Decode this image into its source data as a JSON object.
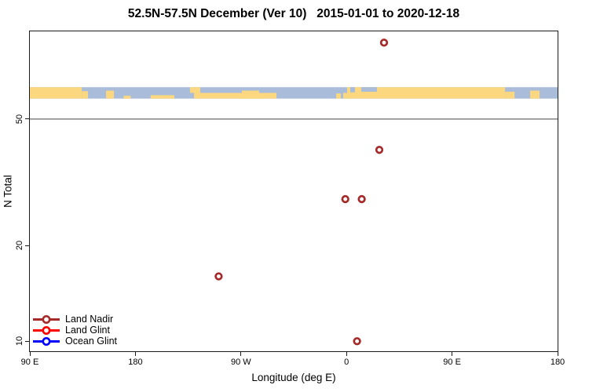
{
  "title": "52.5N-57.5N December (Ver 10)   2015-01-01 to 2020-12-18",
  "axes": {
    "xlabel": "Longitude (deg E)",
    "ylabel": "N Total"
  },
  "legend": {
    "items": [
      {
        "label": "Land Nadir",
        "color": "#A52A2A"
      },
      {
        "label": "Land Glint",
        "color": "#FF0000"
      },
      {
        "label": "Ocean Glint",
        "color": "#0000FF"
      }
    ]
  },
  "chart_data": {
    "type": "scatter",
    "title": "52.5N-57.5N December (Ver 10)   2015-01-01 to 2020-12-18",
    "xlabel": "Longitude (deg E)",
    "ylabel": "N Total",
    "x_axis": {
      "min": 90,
      "max": 540,
      "note": "longitude axis wraps eastward: 90E -> 180 -> 90W -> 0 -> 90E -> 180",
      "ticks": [
        {
          "x": 90,
          "label": "90 E"
        },
        {
          "x": 180,
          "label": "180"
        },
        {
          "x": 270,
          "label": "90 W"
        },
        {
          "x": 360,
          "label": "0"
        },
        {
          "x": 450,
          "label": "90 E"
        },
        {
          "x": 540,
          "label": "180"
        }
      ]
    },
    "y_axis": {
      "scale": "log10",
      "min": 9.3,
      "max": 94.4,
      "ticks": [
        {
          "v": 10,
          "label": "10"
        },
        {
          "v": 20,
          "label": "20"
        },
        {
          "v": 50,
          "label": "50"
        }
      ],
      "gridline_at": 50,
      "gridline_color": "#444444"
    },
    "series": [
      {
        "name": "Land Nadir",
        "color": "#A52A2A",
        "points": [
          {
            "x": 392,
            "lon": "32E",
            "n": 87
          },
          {
            "x": 388,
            "lon": "28E",
            "n": 40
          },
          {
            "x": 359,
            "lon": "1W",
            "n": 28
          },
          {
            "x": 373,
            "lon": "13E",
            "n": 28
          },
          {
            "x": 251,
            "lon": "109W",
            "n": 16
          },
          {
            "x": 369,
            "lon": "9E",
            "n": 10
          }
        ]
      },
      {
        "name": "Land Glint",
        "color": "#FF0000",
        "points": []
      },
      {
        "name": "Ocean Glint",
        "color": "#0000FF",
        "points": []
      }
    ],
    "map_band": {
      "description": "land/ocean world-map strip for latitude band 52.5N-57.5N",
      "land_color": "#FBD77F",
      "ocean_color": "#A9BDDB",
      "v_top": 63,
      "v_bottom": 58,
      "land_segments": [
        {
          "x0": 90,
          "x1": 134.3,
          "y0": 0,
          "y1": 1
        },
        {
          "x0": 134.3,
          "x1": 139.6,
          "y0": 0.35,
          "y1": 1
        },
        {
          "x0": 155,
          "x1": 161.7,
          "y0": 0.3,
          "y1": 1
        },
        {
          "x0": 170,
          "x1": 176,
          "y0": 0.75,
          "y1": 1
        },
        {
          "x0": 193,
          "x1": 213.2,
          "y0": 0.7,
          "y1": 1
        },
        {
          "x0": 226.6,
          "x1": 235.3,
          "y0": 0,
          "y1": 0.5
        },
        {
          "x0": 230,
          "x1": 300.3,
          "y0": 0.5,
          "y1": 1
        },
        {
          "x0": 270.8,
          "x1": 285.5,
          "y0": 0.3,
          "y1": 1
        },
        {
          "x0": 351.2,
          "x1": 355.2,
          "y0": 0.55,
          "y1": 1
        },
        {
          "x0": 357.2,
          "x1": 360.5,
          "y0": 0.5,
          "y1": 1
        },
        {
          "x0": 360.5,
          "x1": 495.2,
          "y0": 0,
          "y1": 1
        },
        {
          "x0": 495.2,
          "x1": 503.3,
          "y0": 0.4,
          "y1": 1
        },
        {
          "x0": 516.6,
          "x1": 524.6,
          "y0": 0.3,
          "y1": 1
        }
      ],
      "ocean_patches": [
        {
          "x0": 363.2,
          "x1": 367.2,
          "y0": 0,
          "y1": 0.45
        },
        {
          "x0": 372.6,
          "x1": 386,
          "y0": 0,
          "y1": 0.4
        }
      ]
    }
  }
}
